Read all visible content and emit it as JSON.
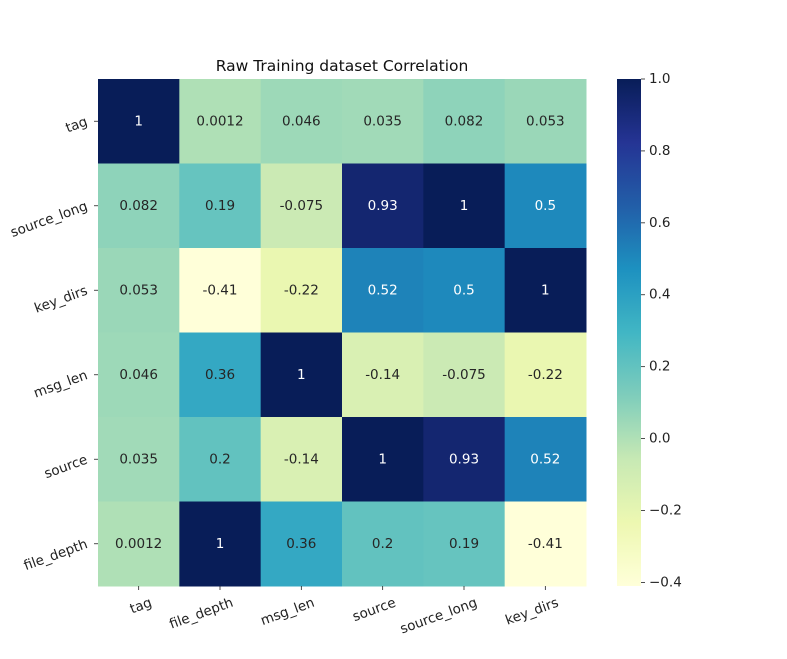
{
  "chart_data": {
    "type": "heatmap",
    "title": "Raw Training dataset Correlation",
    "colormap": "YlGnBu",
    "rows": [
      "tag",
      "source_long",
      "key_dirs",
      "msg_len",
      "source",
      "file_depth"
    ],
    "columns": [
      "tag",
      "file_depth",
      "msg_len",
      "source",
      "source_long",
      "key_dirs"
    ],
    "values": [
      [
        1,
        0.0012,
        0.046,
        0.035,
        0.082,
        0.053
      ],
      [
        0.082,
        0.19,
        -0.075,
        0.93,
        1,
        0.5
      ],
      [
        0.053,
        -0.41,
        -0.22,
        0.52,
        0.5,
        1
      ],
      [
        0.046,
        0.36,
        1,
        -0.14,
        -0.075,
        -0.22
      ],
      [
        0.035,
        0.2,
        -0.14,
        1,
        0.93,
        0.52
      ],
      [
        0.0012,
        1,
        0.36,
        0.2,
        0.19,
        -0.41
      ]
    ],
    "labels": [
      [
        "1",
        "0.0012",
        "0.046",
        "0.035",
        "0.082",
        "0.053"
      ],
      [
        "0.082",
        "0.19",
        "-0.075",
        "0.93",
        "1",
        "0.5"
      ],
      [
        "0.053",
        "-0.41",
        "-0.22",
        "0.52",
        "0.5",
        "1"
      ],
      [
        "0.046",
        "0.36",
        "1",
        "-0.14",
        "-0.075",
        "-0.22"
      ],
      [
        "0.035",
        "0.2",
        "-0.14",
        "1",
        "0.93",
        "0.52"
      ],
      [
        "0.0012",
        "1",
        "0.36",
        "0.2",
        "0.19",
        "-0.41"
      ]
    ],
    "colorbar": {
      "vmin": -0.41,
      "vmax": 1.0,
      "ticks": [
        -0.4,
        -0.2,
        0.0,
        0.2,
        0.4,
        0.6,
        0.8,
        1.0
      ],
      "tick_labels": [
        "−0.4",
        "−0.2",
        "0.0",
        "0.2",
        "0.4",
        "0.6",
        "0.8",
        "1.0"
      ]
    }
  }
}
